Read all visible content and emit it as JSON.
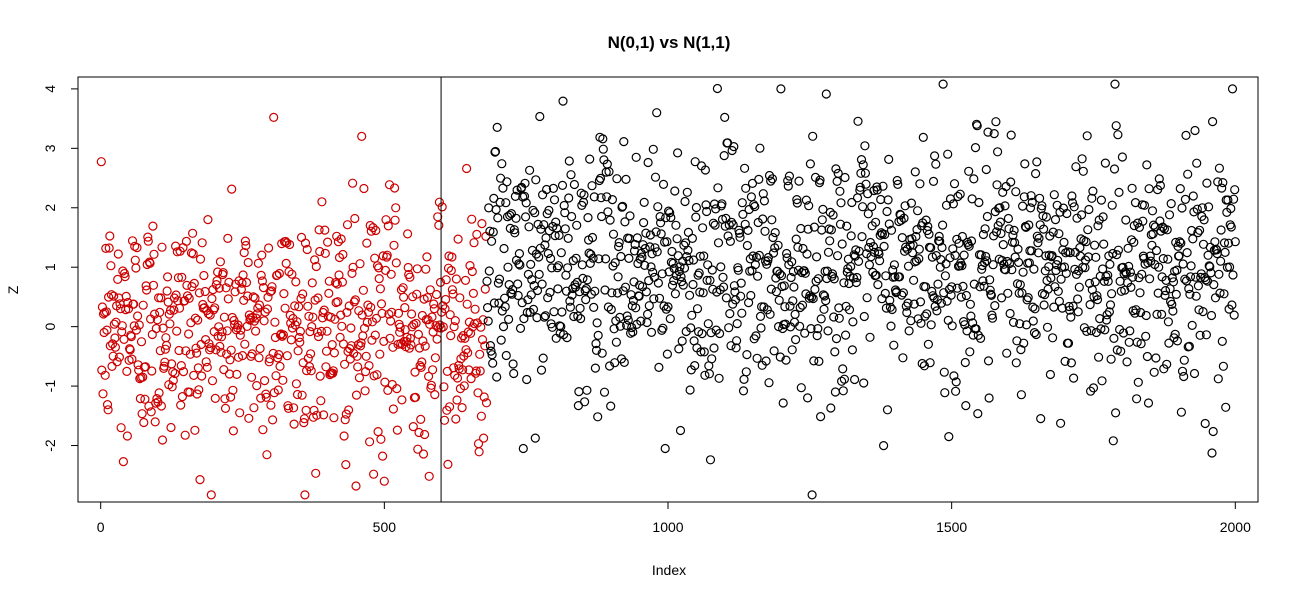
{
  "chart_data": {
    "type": "scatter",
    "title": "N(0,1) vs N(1,1)",
    "xlabel": "Index",
    "ylabel": "Z",
    "xlim": [
      -40,
      2040
    ],
    "ylim": [
      -2.95,
      4.2
    ],
    "x_ticks": [
      0,
      500,
      1000,
      1500,
      2000
    ],
    "y_ticks": [
      -2,
      -1,
      0,
      1,
      2,
      3,
      4
    ],
    "vline": 600,
    "grid": false,
    "legend": "none",
    "series": [
      {
        "color": "#cc0000",
        "distribution": {
          "mean": 0,
          "sd": 1
        },
        "x_range": [
          1,
          680
        ],
        "highlights": [
          [
            10,
            0.25
          ],
          [
            40,
            -2.27
          ],
          [
            60,
            1.35
          ],
          [
            305,
            3.52
          ],
          [
            460,
            3.2
          ],
          [
            450,
            -2.68
          ],
          [
            500,
            -2.6
          ],
          [
            390,
            2.1
          ],
          [
            645,
            2.66
          ],
          [
            520,
            2.0
          ]
        ]
      },
      {
        "color": "#000000",
        "distribution": {
          "mean": 1,
          "sd": 1
        },
        "x_range": [
          681,
          2000
        ],
        "highlights": [
          [
            1485,
            4.08
          ],
          [
            1995,
            4.0
          ],
          [
            980,
            3.6
          ],
          [
            1100,
            3.52
          ],
          [
            1790,
            3.38
          ],
          [
            1545,
            3.38
          ],
          [
            1960,
            3.45
          ],
          [
            1075,
            -2.24
          ],
          [
            745,
            -2.05
          ],
          [
            995,
            -2.05
          ],
          [
            1495,
            -1.85
          ],
          [
            1785,
            -1.92
          ],
          [
            1905,
            -1.44
          ]
        ]
      }
    ]
  }
}
